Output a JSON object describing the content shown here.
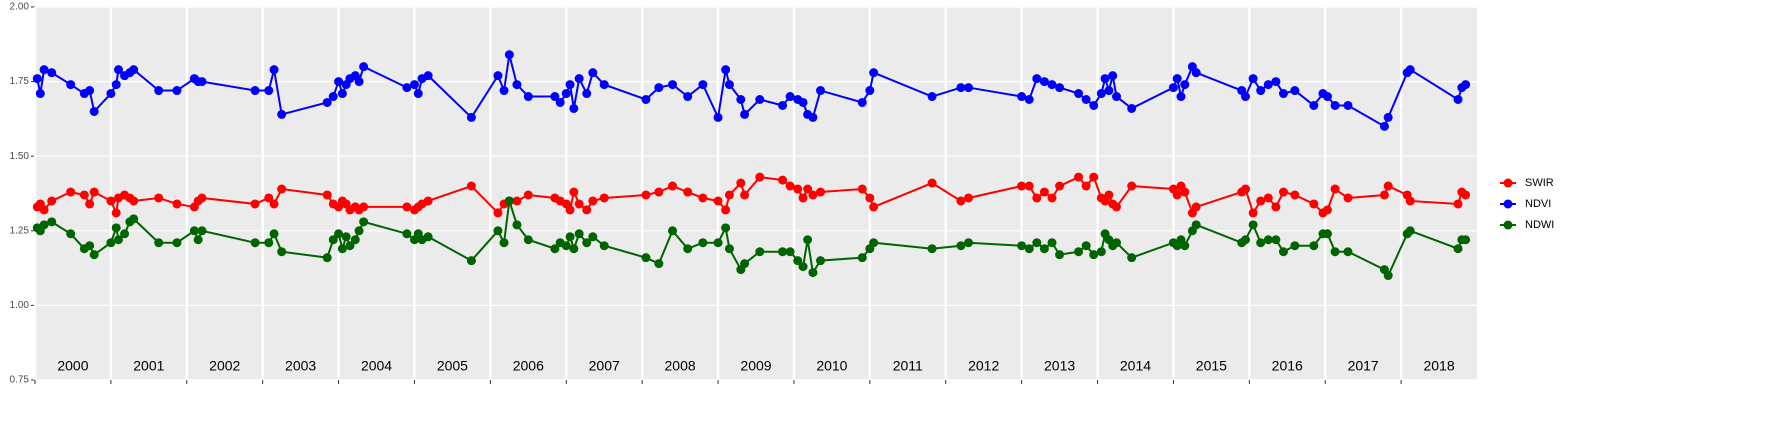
{
  "chart_data": {
    "type": "line",
    "x": [
      2000.03,
      2000.07,
      2000.12,
      2000.22,
      2000.47,
      2000.65,
      2000.72,
      2000.78,
      2001.0,
      2001.07,
      2001.1,
      2001.18,
      2001.25,
      2001.3,
      2001.63,
      2001.87,
      2002.1,
      2002.15,
      2002.2,
      2002.9,
      2003.08,
      2003.15,
      2003.25,
      2003.85,
      2003.93,
      2004.0,
      2004.05,
      2004.1,
      2004.15,
      2004.22,
      2004.27,
      2004.33,
      2004.9,
      2005.0,
      2005.05,
      2005.1,
      2005.18,
      2005.75,
      2006.1,
      2006.18,
      2006.25,
      2006.35,
      2006.5,
      2006.85,
      2006.92,
      2007.0,
      2007.05,
      2007.1,
      2007.17,
      2007.27,
      2007.35,
      2007.5,
      2008.05,
      2008.22,
      2008.4,
      2008.6,
      2008.8,
      2009.0,
      2009.1,
      2009.15,
      2009.3,
      2009.35,
      2009.55,
      2009.85,
      2009.95,
      2010.05,
      2010.12,
      2010.18,
      2010.25,
      2010.35,
      2010.9,
      2011.0,
      2011.05,
      2011.82,
      2012.2,
      2012.3,
      2013.0,
      2013.1,
      2013.2,
      2013.3,
      2013.4,
      2013.5,
      2013.75,
      2013.85,
      2013.95,
      2014.05,
      2014.1,
      2014.15,
      2014.2,
      2014.25,
      2014.45,
      2015.0,
      2015.05,
      2015.1,
      2015.15,
      2015.25,
      2015.3,
      2015.9,
      2015.95,
      2016.05,
      2016.15,
      2016.25,
      2016.35,
      2016.45,
      2016.6,
      2016.85,
      2016.97,
      2017.03,
      2017.13,
      2017.3,
      2017.78,
      2017.83,
      2018.08,
      2018.12,
      2018.75,
      2018.8,
      2018.85
    ],
    "series": [
      {
        "name": "SWIR",
        "color": "#ff0000",
        "values": [
          1.33,
          1.34,
          1.32,
          1.35,
          1.38,
          1.37,
          1.34,
          1.38,
          1.35,
          1.31,
          1.36,
          1.37,
          1.36,
          1.35,
          1.36,
          1.34,
          1.33,
          1.35,
          1.36,
          1.34,
          1.36,
          1.34,
          1.39,
          1.37,
          1.34,
          1.33,
          1.35,
          1.34,
          1.32,
          1.33,
          1.32,
          1.33,
          1.33,
          1.32,
          1.33,
          1.34,
          1.35,
          1.4,
          1.31,
          1.34,
          1.35,
          1.35,
          1.37,
          1.36,
          1.35,
          1.34,
          1.32,
          1.38,
          1.34,
          1.32,
          1.35,
          1.36,
          1.37,
          1.38,
          1.4,
          1.38,
          1.36,
          1.35,
          1.32,
          1.37,
          1.41,
          1.37,
          1.43,
          1.42,
          1.4,
          1.39,
          1.36,
          1.39,
          1.37,
          1.38,
          1.39,
          1.36,
          1.33,
          1.41,
          1.35,
          1.36,
          1.4,
          1.4,
          1.36,
          1.38,
          1.36,
          1.4,
          1.43,
          1.4,
          1.43,
          1.36,
          1.35,
          1.37,
          1.34,
          1.33,
          1.4,
          1.39,
          1.37,
          1.4,
          1.38,
          1.31,
          1.33,
          1.38,
          1.39,
          1.31,
          1.35,
          1.36,
          1.33,
          1.38,
          1.37,
          1.34,
          1.31,
          1.32,
          1.39,
          1.36,
          1.37,
          1.4,
          1.37,
          1.35,
          1.34,
          1.38,
          1.37
        ]
      },
      {
        "name": "NDVI",
        "color": "#0000ff",
        "values": [
          1.76,
          1.71,
          1.79,
          1.78,
          1.74,
          1.71,
          1.72,
          1.65,
          1.71,
          1.74,
          1.79,
          1.77,
          1.78,
          1.79,
          1.72,
          1.72,
          1.76,
          1.75,
          1.75,
          1.72,
          1.72,
          1.79,
          1.64,
          1.68,
          1.7,
          1.75,
          1.71,
          1.74,
          1.76,
          1.77,
          1.75,
          1.8,
          1.73,
          1.74,
          1.71,
          1.76,
          1.77,
          1.63,
          1.77,
          1.72,
          1.84,
          1.74,
          1.7,
          1.7,
          1.68,
          1.71,
          1.74,
          1.66,
          1.76,
          1.71,
          1.78,
          1.74,
          1.69,
          1.73,
          1.74,
          1.7,
          1.74,
          1.63,
          1.79,
          1.74,
          1.69,
          1.64,
          1.69,
          1.67,
          1.7,
          1.69,
          1.68,
          1.64,
          1.63,
          1.72,
          1.68,
          1.72,
          1.78,
          1.7,
          1.73,
          1.73,
          1.7,
          1.69,
          1.76,
          1.75,
          1.74,
          1.73,
          1.71,
          1.69,
          1.67,
          1.71,
          1.76,
          1.72,
          1.77,
          1.7,
          1.66,
          1.73,
          1.76,
          1.7,
          1.74,
          1.8,
          1.78,
          1.72,
          1.7,
          1.76,
          1.72,
          1.74,
          1.75,
          1.71,
          1.72,
          1.67,
          1.71,
          1.7,
          1.67,
          1.67,
          1.6,
          1.63,
          1.78,
          1.79,
          1.69,
          1.73,
          1.74
        ]
      },
      {
        "name": "NDWI",
        "color": "#006400",
        "values": [
          1.26,
          1.25,
          1.27,
          1.28,
          1.24,
          1.19,
          1.2,
          1.17,
          1.21,
          1.26,
          1.22,
          1.24,
          1.28,
          1.29,
          1.21,
          1.21,
          1.25,
          1.22,
          1.25,
          1.21,
          1.21,
          1.24,
          1.18,
          1.16,
          1.22,
          1.24,
          1.19,
          1.23,
          1.2,
          1.22,
          1.25,
          1.28,
          1.24,
          1.22,
          1.24,
          1.22,
          1.23,
          1.15,
          1.25,
          1.21,
          1.35,
          1.27,
          1.22,
          1.19,
          1.21,
          1.2,
          1.23,
          1.19,
          1.24,
          1.21,
          1.23,
          1.2,
          1.16,
          1.14,
          1.25,
          1.19,
          1.21,
          1.21,
          1.26,
          1.19,
          1.12,
          1.14,
          1.18,
          1.18,
          1.18,
          1.15,
          1.13,
          1.22,
          1.11,
          1.15,
          1.16,
          1.19,
          1.21,
          1.19,
          1.2,
          1.21,
          1.2,
          1.19,
          1.21,
          1.19,
          1.21,
          1.17,
          1.18,
          1.2,
          1.17,
          1.18,
          1.24,
          1.22,
          1.2,
          1.21,
          1.16,
          1.21,
          1.2,
          1.22,
          1.2,
          1.25,
          1.27,
          1.21,
          1.22,
          1.27,
          1.21,
          1.22,
          1.22,
          1.18,
          1.2,
          1.2,
          1.24,
          1.24,
          1.18,
          1.18,
          1.12,
          1.1,
          1.24,
          1.25,
          1.19,
          1.22,
          1.22
        ]
      }
    ],
    "xlim": [
      2000,
      2019
    ],
    "xticks": [
      {
        "value": 2000,
        "label": "2000"
      },
      {
        "value": 2001,
        "label": "2001"
      },
      {
        "value": 2002,
        "label": "2002"
      },
      {
        "value": 2003,
        "label": "2003"
      },
      {
        "value": 2004,
        "label": "2004"
      },
      {
        "value": 2005,
        "label": "2005"
      },
      {
        "value": 2006,
        "label": "2006"
      },
      {
        "value": 2007,
        "label": "2007"
      },
      {
        "value": 2008,
        "label": "2008"
      },
      {
        "value": 2009,
        "label": "2009"
      },
      {
        "value": 2010,
        "label": "2010"
      },
      {
        "value": 2011,
        "label": "2011"
      },
      {
        "value": 2012,
        "label": "2012"
      },
      {
        "value": 2013,
        "label": "2013"
      },
      {
        "value": 2014,
        "label": "2014"
      },
      {
        "value": 2015,
        "label": "2015"
      },
      {
        "value": 2016,
        "label": "2016"
      },
      {
        "value": 2017,
        "label": "2017"
      },
      {
        "value": 2018,
        "label": "2018"
      }
    ],
    "ylim": [
      0.75,
      2.0
    ],
    "yticks": [
      0.75,
      {
        "value": 1.0,
        "label": "1.00"
      },
      1.25,
      {
        "value": 1.5,
        "label": "1.50"
      },
      1.75,
      {
        "value": 2.0,
        "label": "2.00"
      }
    ],
    "grid": true,
    "legend": "right"
  }
}
